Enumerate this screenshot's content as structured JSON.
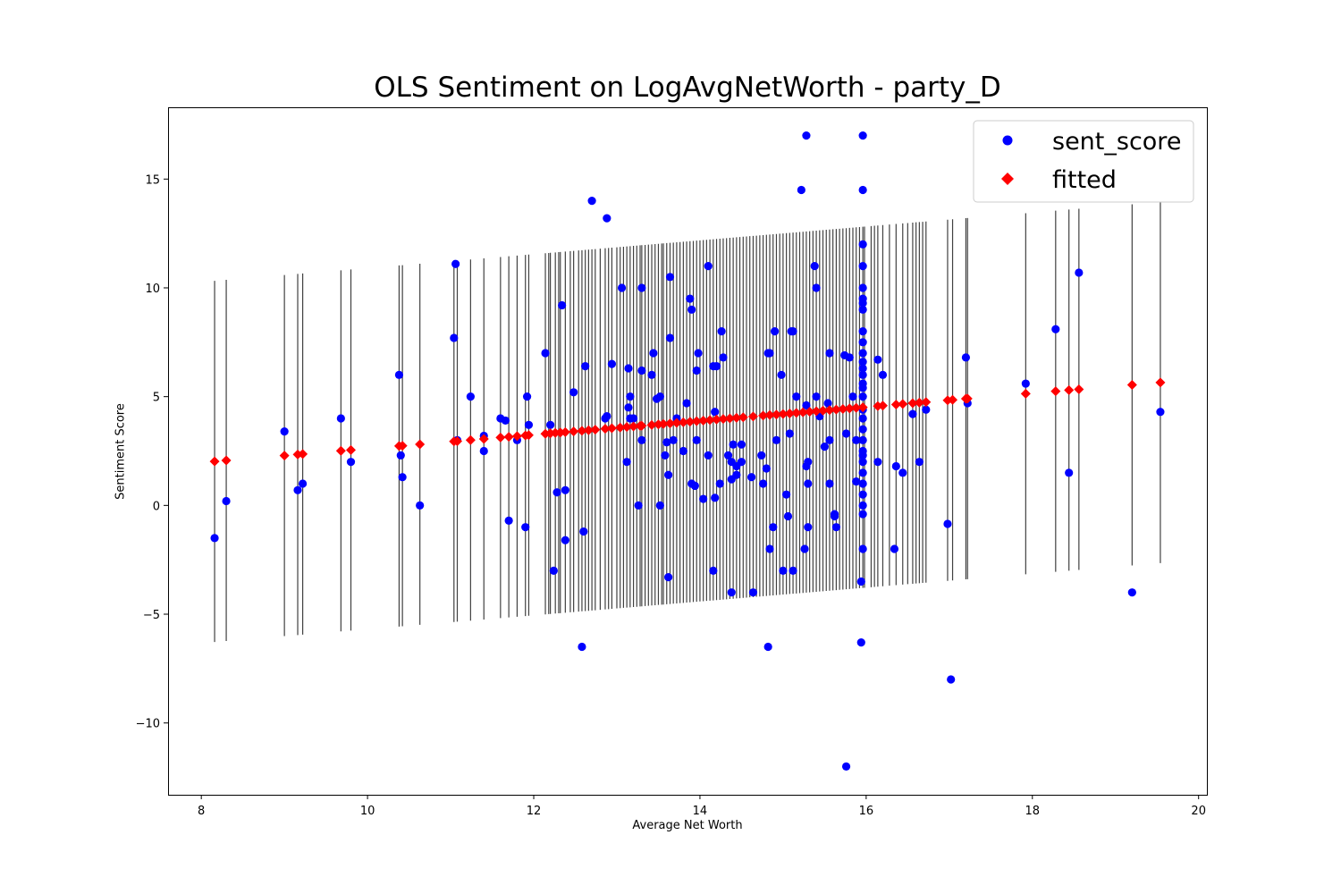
{
  "chart_data": {
    "type": "scatter",
    "title": "OLS Sentiment on LogAvgNetWorth - party_D",
    "xlabel": "Average Net Worth",
    "ylabel": "Sentiment Score",
    "xlim": [
      7.6,
      20.1
    ],
    "ylim": [
      -13.3,
      18.3
    ],
    "xticks": [
      8,
      10,
      12,
      14,
      16,
      18,
      20
    ],
    "xtick_labels": [
      "8",
      "10",
      "12",
      "14",
      "16",
      "18",
      "20"
    ],
    "yticks": [
      -10,
      -5,
      0,
      5,
      10,
      15
    ],
    "ytick_labels": [
      "−10",
      "−5",
      "0",
      "5",
      "10",
      "15"
    ],
    "grid": false,
    "legend_position": "top-right",
    "fit": {
      "intercept": -0.575,
      "slope": 0.3185,
      "ci_half_width": 8.3
    },
    "series": [
      {
        "name": "sent_score",
        "color": "#0000ff",
        "marker": "circle",
        "points": [
          [
            8.16,
            -1.5
          ],
          [
            8.3,
            0.2
          ],
          [
            9.0,
            3.4
          ],
          [
            9.16,
            0.7
          ],
          [
            9.22,
            1.0
          ],
          [
            9.68,
            4.0
          ],
          [
            9.8,
            2.0
          ],
          [
            10.38,
            6.0
          ],
          [
            10.4,
            2.3
          ],
          [
            10.42,
            1.3
          ],
          [
            10.63,
            0.0
          ],
          [
            11.04,
            7.7
          ],
          [
            11.06,
            11.1
          ],
          [
            11.08,
            3.0
          ],
          [
            11.24,
            5.0
          ],
          [
            11.4,
            2.5
          ],
          [
            11.4,
            3.2
          ],
          [
            11.6,
            4.0
          ],
          [
            11.66,
            3.9
          ],
          [
            11.7,
            -0.7
          ],
          [
            11.8,
            3.0
          ],
          [
            11.9,
            -1.0
          ],
          [
            11.92,
            5.0
          ],
          [
            11.94,
            3.7
          ],
          [
            12.14,
            7.0
          ],
          [
            12.2,
            3.7
          ],
          [
            12.24,
            -3.0
          ],
          [
            12.28,
            0.6
          ],
          [
            12.34,
            9.2
          ],
          [
            12.38,
            0.7
          ],
          [
            12.38,
            -1.6
          ],
          [
            12.48,
            5.2
          ],
          [
            12.58,
            -6.5
          ],
          [
            12.6,
            -1.2
          ],
          [
            12.62,
            6.4
          ],
          [
            12.7,
            14.0
          ],
          [
            12.86,
            4.0
          ],
          [
            12.88,
            4.1
          ],
          [
            12.88,
            13.2
          ],
          [
            12.94,
            6.5
          ],
          [
            13.06,
            10.0
          ],
          [
            13.12,
            2.0
          ],
          [
            13.14,
            6.3
          ],
          [
            13.14,
            4.5
          ],
          [
            13.16,
            5.0
          ],
          [
            13.16,
            4.0
          ],
          [
            13.2,
            4.0
          ],
          [
            13.26,
            0.0
          ],
          [
            13.3,
            10.0
          ],
          [
            13.3,
            3.0
          ],
          [
            13.3,
            6.2
          ],
          [
            13.42,
            6.0
          ],
          [
            13.44,
            7.0
          ],
          [
            13.48,
            4.9
          ],
          [
            13.52,
            5.0
          ],
          [
            13.52,
            0.0
          ],
          [
            13.58,
            2.3
          ],
          [
            13.6,
            2.9
          ],
          [
            13.62,
            1.4
          ],
          [
            13.62,
            -3.3
          ],
          [
            13.64,
            7.7
          ],
          [
            13.64,
            10.5
          ],
          [
            13.68,
            3.0
          ],
          [
            13.72,
            4.0
          ],
          [
            13.8,
            2.5
          ],
          [
            13.84,
            4.7
          ],
          [
            13.88,
            9.5
          ],
          [
            13.9,
            9.0
          ],
          [
            13.9,
            1.0
          ],
          [
            13.94,
            0.9
          ],
          [
            13.96,
            6.2
          ],
          [
            13.96,
            3.0
          ],
          [
            13.98,
            7.0
          ],
          [
            14.04,
            0.3
          ],
          [
            14.1,
            11.0
          ],
          [
            14.1,
            2.3
          ],
          [
            14.16,
            6.4
          ],
          [
            14.16,
            -3.0
          ],
          [
            14.18,
            0.35
          ],
          [
            14.18,
            4.3
          ],
          [
            14.2,
            6.4
          ],
          [
            14.24,
            1.0
          ],
          [
            14.26,
            8.0
          ],
          [
            14.28,
            6.8
          ],
          [
            14.34,
            2.3
          ],
          [
            14.38,
            1.2
          ],
          [
            14.38,
            2.0
          ],
          [
            14.38,
            -4.0
          ],
          [
            14.4,
            2.8
          ],
          [
            14.44,
            1.8
          ],
          [
            14.44,
            1.4
          ],
          [
            14.5,
            2.8
          ],
          [
            14.5,
            2.0
          ],
          [
            14.62,
            1.3
          ],
          [
            14.64,
            -4.0
          ],
          [
            14.74,
            2.3
          ],
          [
            14.76,
            1.0
          ],
          [
            14.8,
            1.7
          ],
          [
            14.82,
            -6.5
          ],
          [
            14.82,
            7.0
          ],
          [
            14.84,
            -2.0
          ],
          [
            14.84,
            7.0
          ],
          [
            14.88,
            -1.0
          ],
          [
            14.9,
            8.0
          ],
          [
            14.92,
            3.0
          ],
          [
            14.98,
            6.0
          ],
          [
            15.0,
            -3.0
          ],
          [
            15.04,
            0.5
          ],
          [
            15.06,
            -0.5
          ],
          [
            15.08,
            3.3
          ],
          [
            15.1,
            8.0
          ],
          [
            15.12,
            8.0
          ],
          [
            15.12,
            -3.0
          ],
          [
            15.16,
            5.0
          ],
          [
            15.22,
            14.5
          ],
          [
            15.26,
            -2.0
          ],
          [
            15.28,
            17.0
          ],
          [
            15.28,
            4.6
          ],
          [
            15.28,
            1.8
          ],
          [
            15.3,
            -1.0
          ],
          [
            15.3,
            2.0
          ],
          [
            15.3,
            1.0
          ],
          [
            15.38,
            11.0
          ],
          [
            15.4,
            10.0
          ],
          [
            15.4,
            5.0
          ],
          [
            15.44,
            4.1
          ],
          [
            15.5,
            2.7
          ],
          [
            15.54,
            4.7
          ],
          [
            15.56,
            1.0
          ],
          [
            15.56,
            3.0
          ],
          [
            15.56,
            7.0
          ],
          [
            15.62,
            -0.5
          ],
          [
            15.62,
            -0.4
          ],
          [
            15.64,
            -1.0
          ],
          [
            15.74,
            6.9
          ],
          [
            15.76,
            3.3
          ],
          [
            15.76,
            -12.0
          ],
          [
            15.8,
            6.8
          ],
          [
            15.84,
            5.0
          ],
          [
            15.88,
            1.1
          ],
          [
            15.88,
            3.0
          ],
          [
            15.94,
            -6.3
          ],
          [
            15.94,
            -3.5
          ],
          [
            15.96,
            -2.0
          ],
          [
            15.96,
            17.0
          ],
          [
            15.96,
            14.5
          ],
          [
            15.96,
            12.0
          ],
          [
            15.96,
            11.0
          ],
          [
            15.96,
            10.0
          ],
          [
            15.96,
            9.5
          ],
          [
            15.96,
            9.3
          ],
          [
            15.96,
            9.0
          ],
          [
            15.96,
            8.0
          ],
          [
            15.96,
            7.5
          ],
          [
            15.96,
            7.0
          ],
          [
            15.96,
            6.6
          ],
          [
            15.96,
            6.3
          ],
          [
            15.96,
            6.0
          ],
          [
            15.96,
            5.6
          ],
          [
            15.96,
            5.4
          ],
          [
            15.96,
            5.0
          ],
          [
            15.96,
            4.4
          ],
          [
            15.96,
            4.0
          ],
          [
            15.96,
            3.5
          ],
          [
            15.96,
            3.0
          ],
          [
            15.96,
            2.5
          ],
          [
            15.96,
            2.3
          ],
          [
            15.96,
            2.0
          ],
          [
            15.96,
            1.5
          ],
          [
            15.96,
            1.0
          ],
          [
            15.96,
            0.5
          ],
          [
            15.96,
            0.0
          ],
          [
            15.96,
            -0.4
          ],
          [
            16.14,
            6.7
          ],
          [
            16.14,
            2.0
          ],
          [
            16.2,
            6.0
          ],
          [
            16.34,
            -2.0
          ],
          [
            16.36,
            1.8
          ],
          [
            16.44,
            1.5
          ],
          [
            16.56,
            4.2
          ],
          [
            16.64,
            2.0
          ],
          [
            16.72,
            4.4
          ],
          [
            16.98,
            -0.85
          ],
          [
            17.02,
            -8.0
          ],
          [
            17.2,
            6.8
          ],
          [
            17.22,
            4.7
          ],
          [
            17.92,
            5.6
          ],
          [
            18.28,
            8.1
          ],
          [
            18.44,
            1.5
          ],
          [
            18.56,
            10.7
          ],
          [
            19.2,
            -4.0
          ],
          [
            19.54,
            4.3
          ]
        ]
      },
      {
        "name": "fitted",
        "color": "#ff0000",
        "marker": "diamond",
        "x": [
          8.16,
          8.3,
          9.0,
          9.16,
          9.22,
          9.68,
          9.8,
          10.38,
          10.42,
          10.63,
          11.04,
          11.08,
          11.24,
          11.4,
          11.6,
          11.7,
          11.8,
          11.9,
          11.94,
          12.14,
          12.2,
          12.26,
          12.32,
          12.38,
          12.48,
          12.58,
          12.66,
          12.74,
          12.86,
          12.94,
          13.04,
          13.12,
          13.2,
          13.28,
          13.3,
          13.42,
          13.5,
          13.56,
          13.64,
          13.72,
          13.8,
          13.88,
          13.96,
          14.04,
          14.12,
          14.2,
          14.28,
          14.36,
          14.44,
          14.52,
          14.64,
          14.76,
          14.84,
          14.92,
          15.0,
          15.08,
          15.16,
          15.24,
          15.32,
          15.4,
          15.48,
          15.56,
          15.64,
          15.72,
          15.8,
          15.88,
          15.96,
          16.14,
          16.2,
          16.36,
          16.44,
          16.56,
          16.64,
          16.72,
          16.98,
          17.04,
          17.2,
          17.22,
          17.92,
          18.28,
          18.44,
          18.56,
          19.2,
          19.54
        ]
      },
      {
        "name": "",
        "color": "#000000",
        "marker": "vline",
        "x": [
          8.16,
          8.3,
          9.0,
          9.16,
          9.22,
          9.68,
          9.8,
          10.38,
          10.42,
          10.63,
          11.04,
          11.08,
          11.24,
          11.4,
          11.6,
          11.7,
          11.8,
          11.9,
          11.94,
          12.14,
          12.2,
          12.26,
          12.32,
          12.38,
          12.48,
          12.58,
          12.66,
          12.74,
          12.86,
          12.94,
          13.04,
          13.12,
          13.2,
          13.28,
          13.3,
          13.42,
          13.5,
          13.56,
          13.64,
          13.72,
          13.8,
          13.88,
          13.96,
          14.04,
          14.12,
          14.2,
          14.28,
          14.36,
          14.44,
          14.52,
          14.64,
          14.76,
          14.84,
          14.92,
          15.0,
          15.08,
          15.16,
          15.24,
          15.32,
          15.4,
          15.48,
          15.56,
          15.64,
          15.72,
          15.8,
          15.88,
          15.96,
          16.14,
          16.2,
          16.36,
          16.44,
          16.56,
          16.64,
          16.72,
          16.98,
          17.04,
          17.2,
          17.22,
          17.92,
          18.28,
          18.44,
          18.56,
          19.2,
          19.54,
          12.18,
          12.3,
          12.44,
          12.54,
          12.62,
          12.7,
          12.8,
          12.9,
          13.0,
          13.08,
          13.16,
          13.24,
          13.34,
          13.38,
          13.46,
          13.54,
          13.6,
          13.68,
          13.76,
          13.84,
          13.92,
          14.0,
          14.08,
          14.16,
          14.24,
          14.32,
          14.4,
          14.48,
          14.56,
          14.6,
          14.68,
          14.72,
          14.8,
          14.88,
          14.96,
          15.04,
          15.12,
          15.2,
          15.28,
          15.36,
          15.44,
          15.52,
          15.6,
          15.68,
          15.76,
          15.84,
          15.92,
          15.98,
          16.06,
          16.1,
          16.28,
          16.5,
          16.6,
          16.68
        ]
      }
    ]
  }
}
